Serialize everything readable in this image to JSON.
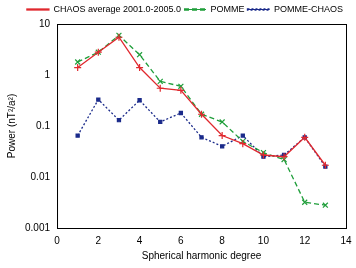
{
  "chart_data": {
    "type": "line",
    "x_label": "Spherical harmonic degree",
    "y_label": "Power (nT²/a²)",
    "x": [
      1,
      2,
      3,
      4,
      5,
      6,
      7,
      8,
      9,
      10,
      11,
      12,
      13
    ],
    "series": [
      {
        "name": "CHAOS average 2001.0-2005.0",
        "color": "#e0282e",
        "marker": "plus",
        "line_style": "solid",
        "values": [
          1.4,
          2.8,
          5.5,
          1.4,
          0.55,
          0.5,
          0.17,
          0.065,
          0.045,
          0.027,
          0.025,
          0.06,
          0.017
        ]
      },
      {
        "name": "POMME",
        "color": "#1f9e3a",
        "marker": "cross",
        "line_style": "dashed",
        "values": [
          1.8,
          2.8,
          6,
          2.5,
          0.75,
          0.6,
          0.17,
          0.12,
          0.05,
          0.03,
          0.022,
          0.0032,
          0.0028
        ]
      },
      {
        "name": "POMME-CHAOS",
        "color": "#1a2a8a",
        "marker": "square",
        "line_style": "dotted",
        "values": [
          0.065,
          0.33,
          0.13,
          0.32,
          0.12,
          0.18,
          0.06,
          0.04,
          0.065,
          0.025,
          0.027,
          0.06,
          0.016
        ]
      }
    ],
    "xlim": [
      0,
      14
    ],
    "xticks": [
      0,
      2,
      4,
      6,
      8,
      10,
      12,
      14
    ],
    "ylim": [
      0.001,
      10
    ],
    "yticks": [
      0.001,
      0.01,
      0.1,
      1,
      10
    ],
    "log": "y",
    "grid": false,
    "legend": "upper right"
  }
}
